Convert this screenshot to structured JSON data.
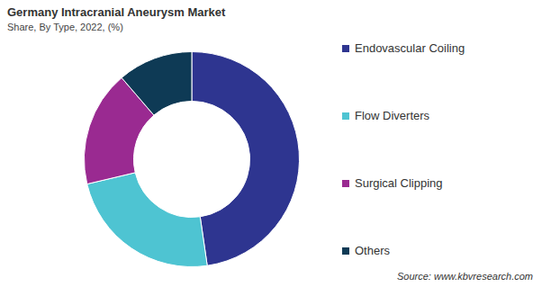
{
  "chart_data": {
    "type": "doughnut",
    "title": "Germany Intracranial Aneurysm Market",
    "subtitle": "Share, By Type, 2022, (%)",
    "categories": [
      "Endovascular Coiling",
      "Flow Diverters",
      "Surgical Clipping",
      "Others"
    ],
    "values": [
      47.7,
      23.6,
      17.4,
      11.3
    ],
    "colors": [
      "#2e3590",
      "#4ec4d2",
      "#9a2a91",
      "#0e3a55"
    ],
    "legend": "right",
    "source": "Source: www.kbvresearch.com"
  }
}
